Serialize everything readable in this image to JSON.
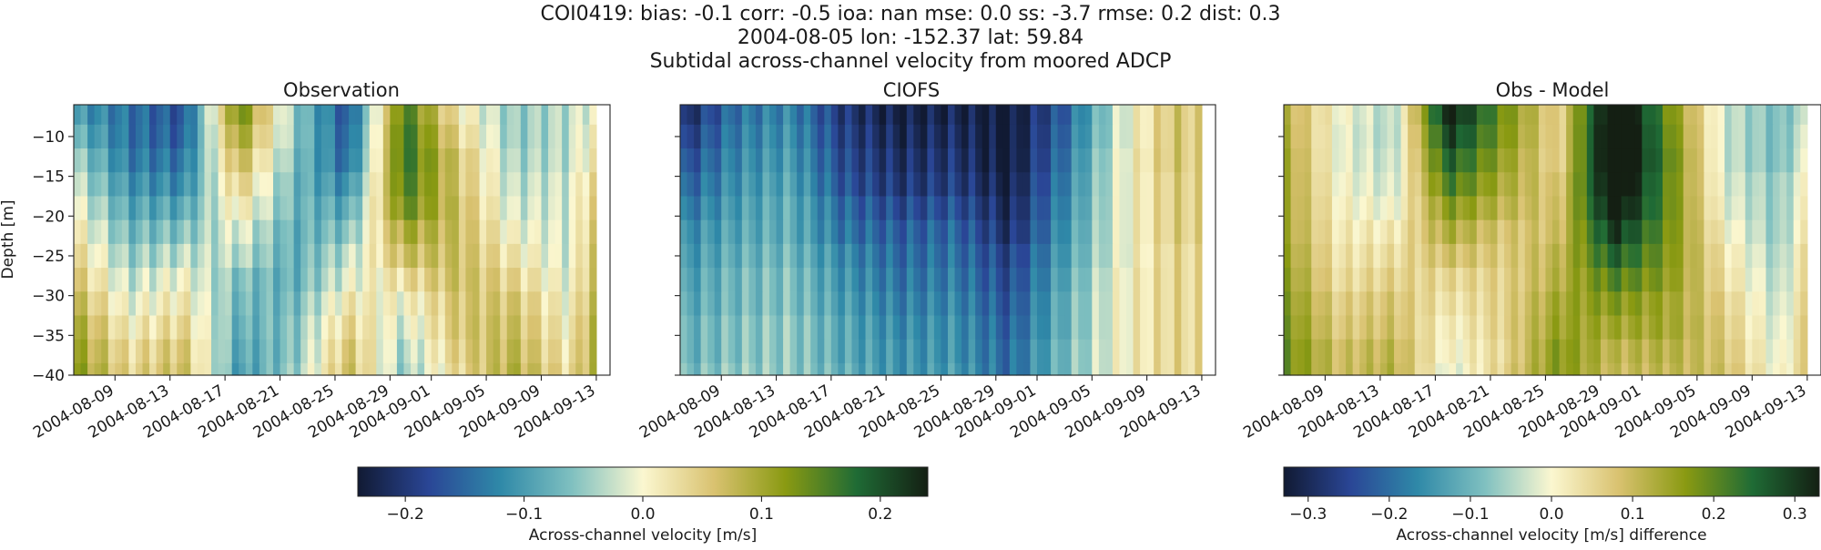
{
  "figure": {
    "title_lines": [
      "COI0419: bias: -0.1  corr: -0.5  ioa: nan  mse: 0.0  ss: -3.7  rmse: 0.2  dist: 0.3",
      "2004-08-05 lon: -152.37 lat: 59.84",
      "Subtidal across-channel velocity from moored ADCP"
    ]
  },
  "chart_data": [
    {
      "type": "heatmap",
      "title": "Observation",
      "ylabel": "Depth [m]",
      "ylim": [
        -40,
        -6
      ],
      "yticks": [
        -10,
        -15,
        -20,
        -25,
        -30,
        -35,
        -40
      ],
      "x_start": "2004-08-06",
      "x_end": "2004-09-14",
      "xticks": [
        "2004-08-09",
        "2004-08-13",
        "2004-08-17",
        "2004-08-21",
        "2004-08-25",
        "2004-08-29",
        "2004-09-01",
        "2004-09-05",
        "2004-09-09",
        "2004-09-13"
      ],
      "data_x_start": "2004-08-06",
      "data_x_end": "2004-09-13",
      "colormap": "delta",
      "clim": [
        -0.24,
        0.24
      ],
      "depths": [
        -7,
        -10,
        -13,
        -16,
        -19,
        -22,
        -25,
        -28,
        -31,
        -34,
        -37,
        -40
      ],
      "dates": [
        "2004-08-06",
        "2004-08-10",
        "2004-08-14",
        "2004-08-18",
        "2004-08-22",
        "2004-08-26",
        "2004-08-30",
        "2004-09-03",
        "2004-09-07",
        "2004-09-11",
        "2004-09-13"
      ],
      "values": [
        [
          -0.1,
          -0.14,
          -0.17,
          0.14,
          -0.05,
          -0.17,
          0.16,
          0.02,
          -0.05,
          -0.03,
          0.0
        ],
        [
          -0.07,
          -0.14,
          -0.16,
          0.11,
          -0.05,
          -0.16,
          0.17,
          0.04,
          -0.05,
          -0.03,
          0.02
        ],
        [
          -0.04,
          -0.13,
          -0.14,
          0.08,
          -0.06,
          -0.15,
          0.17,
          0.06,
          -0.04,
          -0.03,
          0.03
        ],
        [
          -0.02,
          -0.11,
          -0.12,
          0.05,
          -0.07,
          -0.12,
          0.16,
          0.06,
          -0.03,
          -0.02,
          0.05
        ],
        [
          0.0,
          -0.09,
          -0.09,
          0.02,
          -0.07,
          -0.09,
          0.14,
          0.07,
          -0.02,
          -0.02,
          0.06
        ],
        [
          0.02,
          -0.07,
          -0.06,
          -0.01,
          -0.08,
          -0.06,
          0.1,
          0.07,
          0.0,
          -0.02,
          0.07
        ],
        [
          0.04,
          -0.05,
          -0.03,
          -0.03,
          -0.08,
          -0.03,
          0.07,
          0.07,
          0.02,
          -0.02,
          0.08
        ],
        [
          0.06,
          -0.03,
          0.0,
          -0.06,
          -0.08,
          -0.01,
          0.03,
          0.07,
          0.04,
          -0.01,
          0.08
        ],
        [
          0.08,
          -0.01,
          0.02,
          -0.07,
          -0.07,
          0.02,
          0.0,
          0.06,
          0.06,
          0.0,
          0.09
        ],
        [
          0.1,
          0.01,
          0.04,
          -0.08,
          -0.06,
          0.04,
          -0.02,
          0.06,
          0.07,
          0.01,
          0.1
        ],
        [
          0.11,
          0.03,
          0.06,
          -0.09,
          -0.06,
          0.06,
          -0.04,
          0.05,
          0.08,
          0.02,
          0.1
        ],
        [
          0.12,
          0.04,
          0.07,
          -0.1,
          -0.05,
          0.07,
          -0.05,
          0.04,
          0.09,
          0.03,
          0.1
        ]
      ]
    },
    {
      "type": "heatmap",
      "title": "CIOFS",
      "ylim": [
        -40,
        -6
      ],
      "yticks": [
        -10,
        -15,
        -20,
        -25,
        -30,
        -35,
        -40
      ],
      "x_start": "2004-08-06",
      "x_end": "2004-09-14",
      "xticks": [
        "2004-08-09",
        "2004-08-13",
        "2004-08-17",
        "2004-08-21",
        "2004-08-25",
        "2004-08-29",
        "2004-09-01",
        "2004-09-05",
        "2004-09-09",
        "2004-09-13"
      ],
      "data_x_start": "2004-08-06",
      "data_x_end": "2004-09-13",
      "colormap": "delta",
      "clim": [
        -0.24,
        0.24
      ],
      "depths": [
        -7,
        -10,
        -13,
        -16,
        -19,
        -22,
        -25,
        -28,
        -31,
        -34,
        -37,
        -40
      ],
      "dates": [
        "2004-08-06",
        "2004-08-10",
        "2004-08-14",
        "2004-08-18",
        "2004-08-22",
        "2004-08-26",
        "2004-08-30",
        "2004-09-03",
        "2004-09-07",
        "2004-09-11",
        "2004-09-13"
      ],
      "values": [
        [
          -0.22,
          -0.14,
          -0.12,
          -0.2,
          -0.23,
          -0.22,
          -0.24,
          -0.16,
          -0.02,
          0.06,
          0.04
        ],
        [
          -0.2,
          -0.13,
          -0.11,
          -0.19,
          -0.22,
          -0.21,
          -0.24,
          -0.15,
          -0.02,
          0.06,
          0.04
        ],
        [
          -0.18,
          -0.12,
          -0.1,
          -0.18,
          -0.21,
          -0.2,
          -0.24,
          -0.14,
          -0.01,
          0.06,
          0.04
        ],
        [
          -0.16,
          -0.11,
          -0.09,
          -0.17,
          -0.2,
          -0.19,
          -0.23,
          -0.13,
          -0.01,
          0.05,
          0.04
        ],
        [
          -0.14,
          -0.1,
          -0.08,
          -0.15,
          -0.18,
          -0.17,
          -0.22,
          -0.12,
          -0.01,
          0.05,
          0.04
        ],
        [
          -0.12,
          -0.09,
          -0.08,
          -0.14,
          -0.16,
          -0.15,
          -0.21,
          -0.11,
          -0.01,
          0.05,
          0.04
        ],
        [
          -0.11,
          -0.08,
          -0.07,
          -0.12,
          -0.15,
          -0.14,
          -0.19,
          -0.1,
          -0.01,
          0.04,
          0.03
        ],
        [
          -0.1,
          -0.07,
          -0.06,
          -0.11,
          -0.14,
          -0.13,
          -0.18,
          -0.09,
          0.0,
          0.04,
          0.03
        ],
        [
          -0.09,
          -0.07,
          -0.06,
          -0.1,
          -0.13,
          -0.12,
          -0.17,
          -0.08,
          0.0,
          0.04,
          0.03
        ],
        [
          -0.08,
          -0.06,
          -0.05,
          -0.09,
          -0.12,
          -0.11,
          -0.16,
          -0.08,
          0.0,
          0.04,
          0.03
        ],
        [
          -0.08,
          -0.06,
          -0.05,
          -0.09,
          -0.11,
          -0.11,
          -0.15,
          -0.07,
          0.0,
          0.04,
          0.03
        ],
        [
          -0.07,
          -0.05,
          -0.05,
          -0.08,
          -0.11,
          -0.1,
          -0.15,
          -0.07,
          0.0,
          0.04,
          0.03
        ]
      ]
    },
    {
      "type": "heatmap",
      "title": "Obs - Model",
      "ylim": [
        -40,
        -6
      ],
      "yticks": [
        -10,
        -15,
        -20,
        -25,
        -30,
        -35,
        -40
      ],
      "x_start": "2004-08-06",
      "x_end": "2004-09-14",
      "xticks": [
        "2004-08-09",
        "2004-08-13",
        "2004-08-17",
        "2004-08-21",
        "2004-08-25",
        "2004-08-29",
        "2004-09-01",
        "2004-09-05",
        "2004-09-09",
        "2004-09-13"
      ],
      "data_x_start": "2004-08-06",
      "data_x_end": "2004-09-13",
      "colormap": "delta",
      "clim": [
        -0.33,
        0.33
      ],
      "depths": [
        -7,
        -10,
        -13,
        -16,
        -19,
        -22,
        -25,
        -28,
        -31,
        -34,
        -37,
        -40
      ],
      "dates": [
        "2004-08-06",
        "2004-08-10",
        "2004-08-14",
        "2004-08-18",
        "2004-08-22",
        "2004-08-26",
        "2004-08-30",
        "2004-09-03",
        "2004-09-07",
        "2004-09-11",
        "2004-09-13"
      ],
      "values": [
        [
          0.12,
          0.0,
          -0.05,
          0.34,
          0.18,
          0.05,
          0.4,
          0.18,
          -0.03,
          -0.09,
          -0.04
        ],
        [
          0.13,
          -0.01,
          -0.05,
          0.3,
          0.17,
          0.05,
          0.41,
          0.19,
          -0.03,
          -0.09,
          -0.02
        ],
        [
          0.14,
          -0.01,
          -0.04,
          0.26,
          0.15,
          0.05,
          0.41,
          0.2,
          -0.03,
          -0.09,
          -0.01
        ],
        [
          0.14,
          0.0,
          -0.03,
          0.22,
          0.13,
          0.07,
          0.39,
          0.19,
          -0.02,
          -0.07,
          0.01
        ],
        [
          0.14,
          0.01,
          -0.01,
          0.17,
          0.11,
          0.08,
          0.36,
          0.19,
          -0.01,
          -0.07,
          0.02
        ],
        [
          0.14,
          0.02,
          0.02,
          0.13,
          0.08,
          0.09,
          0.31,
          0.18,
          0.01,
          -0.07,
          0.03
        ],
        [
          0.15,
          0.03,
          0.04,
          0.09,
          0.07,
          0.11,
          0.26,
          0.17,
          0.03,
          -0.06,
          0.05
        ],
        [
          0.16,
          0.04,
          0.06,
          0.05,
          0.06,
          0.12,
          0.21,
          0.16,
          0.04,
          -0.05,
          0.05
        ],
        [
          0.17,
          0.06,
          0.08,
          0.03,
          0.06,
          0.14,
          0.17,
          0.14,
          0.06,
          -0.04,
          0.06
        ],
        [
          0.18,
          0.07,
          0.09,
          0.01,
          0.06,
          0.15,
          0.14,
          0.14,
          0.07,
          -0.03,
          0.07
        ],
        [
          0.19,
          0.09,
          0.11,
          0.0,
          0.05,
          0.17,
          0.11,
          0.12,
          0.08,
          -0.02,
          0.07
        ],
        [
          0.19,
          0.09,
          0.12,
          -0.02,
          0.06,
          0.17,
          0.1,
          0.11,
          0.09,
          -0.01,
          0.07
        ]
      ]
    }
  ],
  "colorbars": [
    {
      "label": "Across-channel velocity [m/s]",
      "ticks": [
        -0.2,
        -0.1,
        0.0,
        0.1,
        0.2
      ],
      "tick_labels": [
        "−0.2",
        "−0.1",
        "0.0",
        "0.1",
        "0.2"
      ],
      "range": [
        -0.24,
        0.24
      ]
    },
    {
      "label": "Across-channel velocity [m/s] difference",
      "ticks": [
        -0.3,
        -0.2,
        -0.1,
        0.0,
        0.1,
        0.2,
        0.3
      ],
      "tick_labels": [
        "−0.3",
        "−0.2",
        "−0.1",
        "0.0",
        "0.1",
        "0.2",
        "0.3"
      ],
      "range": [
        -0.33,
        0.33
      ]
    }
  ],
  "y_tick_labels": [
    "−10",
    "−15",
    "−20",
    "−25",
    "−30",
    "−35",
    "−40"
  ],
  "colors": {
    "cmap_stops": [
      "#111a33",
      "#2a4696",
      "#2f89a8",
      "#7fc0c0",
      "#fbf7d0",
      "#d9c270",
      "#8a9a12",
      "#1f6b35",
      "#141f13"
    ]
  }
}
